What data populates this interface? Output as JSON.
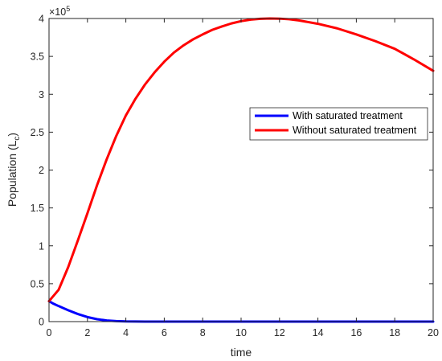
{
  "chart_data": {
    "type": "line",
    "title": "",
    "xlabel": "time",
    "ylabel": {
      "main": "Population (L",
      "subscript": "c",
      "close": ")"
    },
    "exponent": {
      "base": "×10",
      "power": "5"
    },
    "xlim": [
      0,
      20
    ],
    "ylim": [
      0,
      400000
    ],
    "xticks": [
      0,
      2,
      4,
      6,
      8,
      10,
      12,
      14,
      16,
      18,
      20
    ],
    "yticks": [
      0,
      50000,
      100000,
      150000,
      200000,
      250000,
      300000,
      350000,
      400000
    ],
    "ytick_labels": [
      "0",
      "0.5",
      "1",
      "1.5",
      "2",
      "2.5",
      "3",
      "3.5",
      "4"
    ],
    "grid": false,
    "legend_position": "center-right",
    "series": [
      {
        "name": "With saturated treatment",
        "color": "#0000ff",
        "x": [
          0,
          0.2,
          0.5,
          1,
          1.5,
          2,
          2.5,
          3,
          3.5,
          4,
          5,
          6,
          8,
          10,
          12,
          14,
          16,
          18,
          20
        ],
        "y": [
          27000,
          24000,
          20500,
          15000,
          10000,
          6000,
          3200,
          1500,
          700,
          300,
          50,
          10,
          0,
          0,
          0,
          0,
          0,
          0,
          0
        ]
      },
      {
        "name": "Without saturated treatment",
        "color": "#ff0000",
        "x": [
          0,
          0.5,
          1,
          1.5,
          2,
          2.5,
          3,
          3.5,
          4,
          4.5,
          5,
          5.5,
          6,
          6.5,
          7,
          7.5,
          8,
          8.5,
          9,
          9.5,
          10,
          10.5,
          11,
          11.5,
          12,
          12.5,
          13,
          14,
          15,
          16,
          17,
          18,
          19,
          20
        ],
        "y": [
          27000,
          42000,
          72000,
          107000,
          143000,
          180000,
          214000,
          245000,
          272000,
          294000,
          313000,
          329000,
          343000,
          355000,
          364500,
          372500,
          379000,
          385000,
          389500,
          393500,
          396500,
          398500,
          399600,
          400000,
          399800,
          399000,
          397500,
          393000,
          387000,
          379000,
          370000,
          360000,
          346000,
          331000
        ]
      }
    ]
  }
}
